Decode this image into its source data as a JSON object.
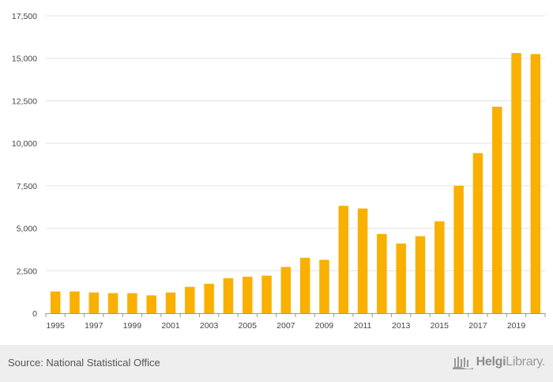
{
  "chart_data": {
    "type": "bar",
    "categories": [
      "1995",
      "1996",
      "1997",
      "1998",
      "1999",
      "2000",
      "2001",
      "2002",
      "2003",
      "2004",
      "2005",
      "2006",
      "2007",
      "2008",
      "2009",
      "2010",
      "2011",
      "2012",
      "2013",
      "2014",
      "2015",
      "2016",
      "2017",
      "2018",
      "2019",
      "2020"
    ],
    "values": [
      1280,
      1280,
      1220,
      1180,
      1180,
      1050,
      1220,
      1550,
      1730,
      2060,
      2150,
      2210,
      2720,
      3260,
      3140,
      6320,
      6160,
      4660,
      4100,
      4530,
      5410,
      7500,
      9420,
      12150,
      15310,
      15250
    ],
    "xtick_labels": [
      "1995",
      "1997",
      "1999",
      "2001",
      "2003",
      "2005",
      "2007",
      "2009",
      "2011",
      "2013",
      "2015",
      "2017",
      "2019"
    ],
    "yticks": [
      0,
      2500,
      5000,
      7500,
      10000,
      12500,
      15000,
      17500
    ],
    "ytick_labels": [
      "0",
      "2,500",
      "5,000",
      "7,500",
      "10,000",
      "12,500",
      "15,000",
      "17,500"
    ],
    "ylim": [
      0,
      17500
    ],
    "bar_color": "#f9b000",
    "grid_color": "#e3e3e3",
    "title": "",
    "xlabel": "",
    "ylabel": ""
  },
  "footer": {
    "source": "Source: National Statistical Office",
    "logo_bold": "Helgi",
    "logo_light": "Library."
  }
}
